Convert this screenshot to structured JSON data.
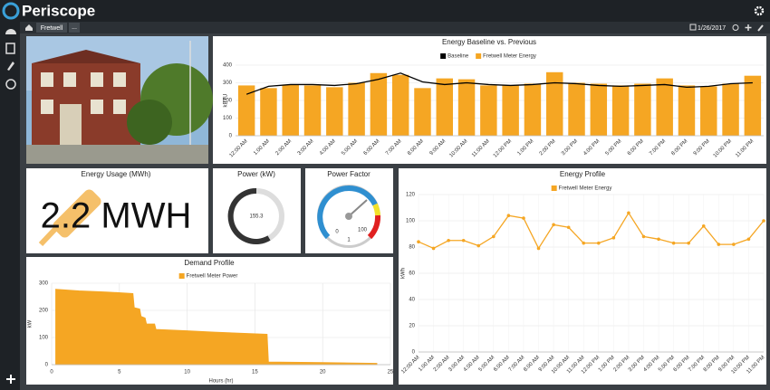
{
  "header": {
    "brand": "Periscope"
  },
  "breadcrumb": {
    "items": [
      "Fretwell",
      "..."
    ],
    "date": "1/26/2017"
  },
  "usage": {
    "title": "Energy Usage (MWh)",
    "value": "2.2 MWH"
  },
  "power": {
    "title": "Power (kW)",
    "value": 155.3
  },
  "power_factor": {
    "title": "Power Factor",
    "labels": [
      "0",
      "100",
      "1"
    ]
  },
  "chart_data": [
    {
      "type": "bar",
      "title": "Energy Baseline vs. Previous",
      "categories": [
        "12:00 AM",
        "1:00 AM",
        "2:00 AM",
        "3:00 AM",
        "4:00 AM",
        "5:00 AM",
        "6:00 AM",
        "7:00 AM",
        "8:00 AM",
        "9:00 AM",
        "10:00 AM",
        "11:00 AM",
        "12:00 PM",
        "1:00 PM",
        "2:00 PM",
        "3:00 PM",
        "4:00 PM",
        "5:00 PM",
        "6:00 PM",
        "7:00 PM",
        "8:00 PM",
        "9:00 PM",
        "10:00 PM",
        "11:00 PM"
      ],
      "series": [
        {
          "name": "Baseline",
          "color": "#000000",
          "type": "line",
          "values": [
            235,
            280,
            290,
            290,
            285,
            295,
            320,
            355,
            305,
            290,
            300,
            290,
            285,
            290,
            300,
            295,
            285,
            280,
            285,
            290,
            275,
            280,
            295,
            300
          ]
        },
        {
          "name": "Fretwell Meter Energy",
          "color": "#f5a623",
          "values": [
            285,
            270,
            290,
            285,
            275,
            300,
            355,
            345,
            270,
            325,
            320,
            285,
            285,
            295,
            360,
            300,
            295,
            285,
            295,
            325,
            285,
            280,
            295,
            340
          ]
        }
      ],
      "y_label": "kBTU",
      "ylim": [
        0,
        400
      ],
      "yticks": [
        0,
        100,
        200,
        300,
        400
      ],
      "grid": true
    },
    {
      "type": "line",
      "title": "Energy Profile",
      "categories": [
        "12:00 AM",
        "1:00 AM",
        "2:00 AM",
        "3:00 AM",
        "4:00 AM",
        "5:00 AM",
        "6:00 AM",
        "7:00 AM",
        "8:00 AM",
        "9:00 AM",
        "10:00 AM",
        "11:00 AM",
        "12:00 PM",
        "1:00 PM",
        "2:00 PM",
        "3:00 PM",
        "4:00 PM",
        "5:00 PM",
        "6:00 PM",
        "7:00 PM",
        "8:00 PM",
        "9:00 PM",
        "10:00 PM",
        "11:00 PM"
      ],
      "series": [
        {
          "name": "Fretwell Meter Energy",
          "color": "#f5a623",
          "values": [
            84,
            79,
            85,
            85,
            81,
            88,
            104,
            102,
            79,
            97,
            95,
            83,
            83,
            87,
            106,
            88,
            86,
            83,
            83,
            96,
            82,
            82,
            86,
            100
          ]
        }
      ],
      "y_label": "kWh",
      "ylim": [
        0,
        120
      ],
      "yticks": [
        0,
        20,
        40,
        60,
        80,
        100,
        120
      ],
      "grid": true
    },
    {
      "type": "area",
      "title": "Demand Profile",
      "x": [
        0.3,
        2,
        4,
        6,
        6.1,
        6.5,
        6.6,
        6.9,
        7,
        7.6,
        7.7,
        10,
        12,
        15.9,
        16,
        20,
        24
      ],
      "series": [
        {
          "name": "Fretwell Meter Power",
          "color": "#f5a623",
          "values": [
            278,
            272,
            268,
            262,
            210,
            205,
            178,
            172,
            150,
            150,
            130,
            125,
            120,
            112,
            10,
            8,
            5
          ]
        }
      ],
      "x_label": "Hours (hr)",
      "y_label": "kW",
      "xlim": [
        0,
        25
      ],
      "xticks": [
        0,
        5,
        10,
        15,
        20,
        25
      ],
      "ylim": [
        0,
        300
      ],
      "yticks": [
        0,
        100,
        200,
        300
      ],
      "grid": true
    }
  ]
}
